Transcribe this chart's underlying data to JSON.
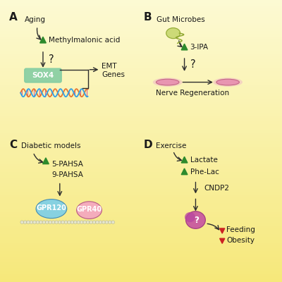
{
  "bg_color_top": "#f0d840",
  "bg_color_bottom": "#fdf8c0",
  "panel_a": {
    "label": "A",
    "aging_text": "Aging",
    "metabolite": "Methylmalonic acid",
    "question": "?",
    "sox4_text": "SOX4",
    "sox4_color": "#7ecba1",
    "emt_text": "EMT\nGenes"
  },
  "panel_b": {
    "label": "B",
    "source_text": "Gut Microbes",
    "metabolite": "3-IPA",
    "question": "?",
    "result_text": "Nerve Regeneration"
  },
  "panel_c": {
    "label": "C",
    "source_text": "Diabetic models",
    "metabolites_line1": "5-PAHSA",
    "metabolites_line2": "9-PAHSA",
    "receptor1": "GPR120",
    "receptor2": "GPR40",
    "receptor1_color": "#7ecfe8",
    "receptor2_color": "#f4a7c0"
  },
  "panel_d": {
    "label": "D",
    "source_text": "Exercise",
    "metabolite1": "Lactate",
    "metabolite2": "Phe-Lac",
    "enzyme": "CNDP2",
    "result1": "Feeding",
    "result2": "Obesity"
  },
  "arrow_color": "#2d2d2d",
  "up_arrow_color": "#2d8a2d",
  "down_arrow_color": "#cc2222",
  "text_color": "#1a1a1a",
  "font_size": 7.5,
  "label_size": 11
}
